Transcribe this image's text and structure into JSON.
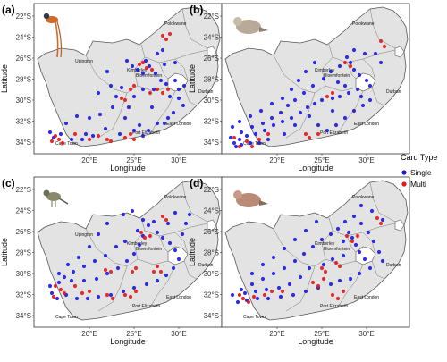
{
  "panels": [
    {
      "label": "(a)",
      "bird": "paradise-flycatcher",
      "show_upington": true,
      "blue": [
        [
          163,
          68
        ],
        [
          167,
          74
        ],
        [
          154,
          78
        ],
        [
          160,
          82
        ],
        [
          174,
          82
        ],
        [
          148,
          74
        ],
        [
          142,
          68
        ],
        [
          180,
          90
        ],
        [
          186,
          94
        ],
        [
          172,
          100
        ],
        [
          190,
          108
        ],
        [
          196,
          90
        ],
        [
          184,
          72
        ],
        [
          150,
          108
        ],
        [
          144,
          120
        ],
        [
          140,
          132
        ],
        [
          156,
          140
        ],
        [
          170,
          120
        ],
        [
          160,
          100
        ],
        [
          200,
          110
        ],
        [
          205,
          118
        ],
        [
          194,
          126
        ],
        [
          188,
          132
        ],
        [
          184,
          138
        ],
        [
          176,
          138
        ],
        [
          166,
          146
        ],
        [
          160,
          152
        ],
        [
          150,
          146
        ],
        [
          134,
          150
        ],
        [
          118,
          144
        ],
        [
          104,
          152
        ],
        [
          96,
          150
        ],
        [
          92,
          156
        ],
        [
          80,
          156
        ],
        [
          68,
          150
        ],
        [
          60,
          154
        ],
        [
          56,
          148
        ],
        [
          74,
          138
        ],
        [
          86,
          130
        ],
        [
          100,
          132
        ],
        [
          112,
          128
        ],
        [
          126,
          120
        ],
        [
          130,
          108
        ],
        [
          136,
          98
        ],
        [
          124,
          96
        ],
        [
          110,
          104
        ],
        [
          120,
          80
        ],
        [
          176,
          60
        ],
        [
          182,
          56
        ],
        [
          200,
          100
        ],
        [
          206,
          96
        ],
        [
          196,
          70
        ]
      ],
      "red": [
        [
          160,
          70
        ],
        [
          164,
          76
        ],
        [
          170,
          78
        ],
        [
          156,
          72
        ],
        [
          182,
          40
        ],
        [
          186,
          44
        ],
        [
          190,
          38
        ],
        [
          176,
          100
        ],
        [
          182,
          104
        ],
        [
          188,
          100
        ],
        [
          168,
          104
        ],
        [
          136,
          110
        ],
        [
          140,
          112
        ],
        [
          120,
          156
        ],
        [
          124,
          158
        ],
        [
          140,
          154
        ],
        [
          146,
          150
        ],
        [
          150,
          156
        ],
        [
          62,
          152
        ],
        [
          66,
          156
        ],
        [
          70,
          160
        ],
        [
          58,
          158
        ],
        [
          110,
          152
        ],
        [
          100,
          156
        ],
        [
          84,
          150
        ],
        [
          150,
          96
        ],
        [
          146,
          100
        ]
      ]
    },
    {
      "label": "(b)",
      "bird": "dove",
      "show_upington": false,
      "blue": [
        [
          388,
          64
        ],
        [
          392,
          70
        ],
        [
          380,
          74
        ],
        [
          396,
          78
        ],
        [
          402,
          84
        ],
        [
          410,
          90
        ],
        [
          414,
          96
        ],
        [
          400,
          100
        ],
        [
          390,
          104
        ],
        [
          380,
          108
        ],
        [
          372,
          110
        ],
        [
          360,
          112
        ],
        [
          352,
          116
        ],
        [
          344,
          120
        ],
        [
          336,
          126
        ],
        [
          326,
          132
        ],
        [
          316,
          136
        ],
        [
          306,
          140
        ],
        [
          296,
          146
        ],
        [
          286,
          150
        ],
        [
          276,
          152
        ],
        [
          268,
          156
        ],
        [
          262,
          160
        ],
        [
          258,
          154
        ],
        [
          270,
          148
        ],
        [
          282,
          142
        ],
        [
          294,
          138
        ],
        [
          304,
          132
        ],
        [
          314,
          126
        ],
        [
          322,
          118
        ],
        [
          330,
          112
        ],
        [
          340,
          104
        ],
        [
          350,
          96
        ],
        [
          362,
          88
        ],
        [
          370,
          80
        ],
        [
          378,
          92
        ],
        [
          386,
          96
        ],
        [
          404,
          108
        ],
        [
          414,
          112
        ],
        [
          420,
          60
        ],
        [
          426,
          70
        ],
        [
          408,
          60
        ],
        [
          396,
          56
        ],
        [
          352,
          70
        ],
        [
          342,
          80
        ],
        [
          334,
          90
        ],
        [
          326,
          100
        ],
        [
          316,
          110
        ],
        [
          304,
          116
        ],
        [
          292,
          124
        ],
        [
          280,
          130
        ],
        [
          268,
          136
        ],
        [
          260,
          142
        ],
        [
          356,
          140
        ],
        [
          366,
          146
        ],
        [
          376,
          140
        ],
        [
          386,
          132
        ],
        [
          396,
          124
        ],
        [
          406,
          118
        ],
        [
          372,
          124
        ],
        [
          346,
          130
        ],
        [
          330,
          140
        ],
        [
          318,
          150
        ],
        [
          300,
          156
        ],
        [
          290,
          160
        ],
        [
          280,
          160
        ],
        [
          270,
          162
        ],
        [
          264,
          164
        ]
      ],
      "red": [
        [
          386,
          70
        ],
        [
          392,
          74
        ],
        [
          426,
          46
        ],
        [
          430,
          52
        ],
        [
          366,
          108
        ],
        [
          372,
          104
        ],
        [
          342,
          150
        ],
        [
          346,
          154
        ],
        [
          356,
          150
        ],
        [
          276,
          158
        ],
        [
          282,
          164
        ],
        [
          290,
          156
        ],
        [
          300,
          150
        ],
        [
          262,
          154
        ],
        [
          268,
          164
        ]
      ]
    },
    {
      "label": "(c)",
      "bird": "small-bird",
      "show_upington": true,
      "blue": [
        [
          160,
          246
        ],
        [
          166,
          252
        ],
        [
          172,
          248
        ],
        [
          154,
          258
        ],
        [
          160,
          264
        ],
        [
          176,
          260
        ],
        [
          182,
          266
        ],
        [
          190,
          272
        ],
        [
          196,
          280
        ],
        [
          200,
          290
        ],
        [
          194,
          300
        ],
        [
          186,
          308
        ],
        [
          176,
          314
        ],
        [
          164,
          318
        ],
        [
          150,
          322
        ],
        [
          138,
          326
        ],
        [
          124,
          330
        ],
        [
          110,
          332
        ],
        [
          98,
          334
        ],
        [
          86,
          334
        ],
        [
          74,
          330
        ],
        [
          64,
          334
        ],
        [
          58,
          328
        ],
        [
          56,
          320
        ],
        [
          66,
          316
        ],
        [
          80,
          314
        ],
        [
          94,
          314
        ],
        [
          108,
          312
        ],
        [
          120,
          306
        ],
        [
          132,
          300
        ],
        [
          142,
          292
        ],
        [
          150,
          284
        ],
        [
          156,
          274
        ],
        [
          140,
          270
        ],
        [
          130,
          276
        ],
        [
          118,
          286
        ],
        [
          106,
          292
        ],
        [
          94,
          298
        ],
        [
          82,
          304
        ],
        [
          72,
          310
        ],
        [
          204,
          262
        ],
        [
          208,
          250
        ],
        [
          212,
          240
        ],
        [
          196,
          238
        ],
        [
          188,
          250
        ],
        [
          120,
          250
        ],
        [
          110,
          262
        ],
        [
          100,
          276
        ],
        [
          88,
          288
        ],
        [
          76,
          296
        ],
        [
          66,
          306
        ],
        [
          138,
          240
        ],
        [
          148,
          236
        ]
      ],
      "red": [
        [
          158,
          260
        ],
        [
          162,
          266
        ],
        [
          168,
          264
        ],
        [
          182,
          242
        ],
        [
          186,
          246
        ],
        [
          176,
          298
        ],
        [
          180,
          304
        ],
        [
          172,
          304
        ],
        [
          148,
          304
        ],
        [
          152,
          300
        ],
        [
          140,
          330
        ],
        [
          146,
          332
        ],
        [
          152,
          326
        ],
        [
          68,
          324
        ],
        [
          72,
          328
        ],
        [
          60,
          332
        ],
        [
          62,
          320
        ],
        [
          120,
          330
        ],
        [
          126,
          334
        ],
        [
          100,
          326
        ],
        [
          92,
          328
        ],
        [
          84,
          320
        ],
        [
          118,
          302
        ],
        [
          124,
          304
        ]
      ]
    },
    {
      "label": "(d)",
      "bird": "laughing-dove",
      "show_upington": false,
      "blue": [
        [
          390,
          260
        ],
        [
          394,
          266
        ],
        [
          384,
          270
        ],
        [
          398,
          274
        ],
        [
          402,
          282
        ],
        [
          408,
          290
        ],
        [
          414,
          300
        ],
        [
          402,
          306
        ],
        [
          392,
          312
        ],
        [
          380,
          314
        ],
        [
          370,
          318
        ],
        [
          356,
          322
        ],
        [
          342,
          326
        ],
        [
          328,
          330
        ],
        [
          314,
          332
        ],
        [
          300,
          334
        ],
        [
          288,
          334
        ],
        [
          276,
          336
        ],
        [
          266,
          338
        ],
        [
          260,
          330
        ],
        [
          270,
          324
        ],
        [
          282,
          318
        ],
        [
          294,
          312
        ],
        [
          306,
          306
        ],
        [
          318,
          300
        ],
        [
          330,
          292
        ],
        [
          340,
          284
        ],
        [
          350,
          276
        ],
        [
          360,
          268
        ],
        [
          370,
          262
        ],
        [
          378,
          256
        ],
        [
          386,
          248
        ],
        [
          396,
          242
        ],
        [
          404,
          250
        ],
        [
          412,
          260
        ],
        [
          418,
          270
        ],
        [
          424,
          282
        ],
        [
          428,
          292
        ],
        [
          346,
          300
        ],
        [
          336,
          310
        ],
        [
          324,
          318
        ],
        [
          312,
          322
        ],
        [
          298,
          324
        ],
        [
          286,
          326
        ],
        [
          274,
          328
        ],
        [
          362,
          296
        ],
        [
          372,
          290
        ],
        [
          384,
          286
        ],
        [
          354,
          248
        ],
        [
          342,
          258
        ],
        [
          330,
          268
        ],
        [
          318,
          278
        ],
        [
          306,
          288
        ],
        [
          294,
          296
        ],
        [
          282,
          306
        ],
        [
          404,
          230
        ],
        [
          416,
          236
        ],
        [
          428,
          246
        ]
      ],
      "red": [
        [
          388,
          264
        ],
        [
          394,
          270
        ],
        [
          400,
          264
        ],
        [
          376,
          294
        ],
        [
          380,
          298
        ],
        [
          360,
          300
        ],
        [
          364,
          304
        ],
        [
          268,
          330
        ],
        [
          272,
          334
        ],
        [
          278,
          338
        ],
        [
          284,
          332
        ],
        [
          296,
          330
        ],
        [
          304,
          326
        ],
        [
          316,
          326
        ],
        [
          372,
          330
        ],
        [
          378,
          334
        ],
        [
          384,
          326
        ],
        [
          350,
          316
        ],
        [
          356,
          320
        ],
        [
          362,
          312
        ],
        [
          422,
          244
        ],
        [
          426,
          250
        ]
      ]
    }
  ],
  "ticks": {
    "y": [
      "22°S",
      "24°S",
      "26°S",
      "28°S",
      "30°S",
      "32°S",
      "34°S"
    ],
    "x": [
      "20°E",
      "25°E",
      "30°E"
    ]
  },
  "axis": {
    "x": "Longitude",
    "y": "Latitude"
  },
  "cities": {
    "polokwane": "Polokwane",
    "upington": "Upington",
    "kimberley": "Kimberley",
    "bloemfontein": "Bloemfontein",
    "durban": "Durban",
    "east_london": "East London",
    "port_elizabeth": "Port Elizabeth",
    "cape_town": "Cape Town"
  },
  "legend": {
    "title": "Card Type",
    "items": [
      {
        "label": "Single",
        "color": "#1a1adb"
      },
      {
        "label": "Multi",
        "color": "#e01b1b"
      }
    ]
  },
  "colors": {
    "land": "#e3e3e3",
    "border": "#555555",
    "water": "#ffffff",
    "single": "#1a1adb",
    "multi": "#e01b1b"
  }
}
